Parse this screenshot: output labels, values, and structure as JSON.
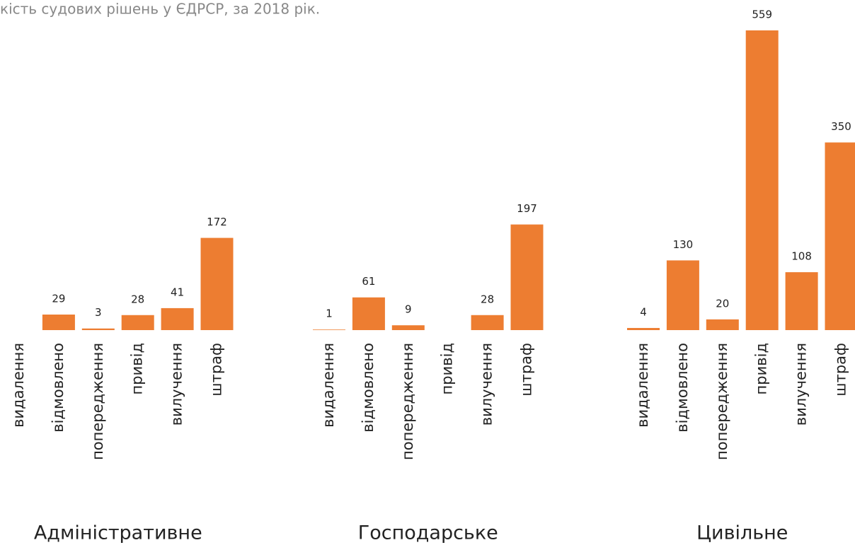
{
  "title": "кість судових рішень у ЄДРСР, за 2018 рік.",
  "chart_data": [
    {
      "type": "bar",
      "title": "Адміністративне",
      "color": "#ed7d31",
      "categories": [
        "видалення",
        "відмовлено",
        "попередження",
        "привід",
        "вилучення",
        "штраф"
      ],
      "values": [
        null,
        29,
        3,
        28,
        41,
        172
      ]
    },
    {
      "type": "bar",
      "title": "Господарське",
      "color": "#ed7d31",
      "categories": [
        "видалення",
        "відмовлено",
        "попередження",
        "привід",
        "вилучення",
        "штраф"
      ],
      "values": [
        1,
        61,
        9,
        null,
        28,
        197
      ]
    },
    {
      "type": "bar",
      "title": "Цивільне",
      "color": "#ed7d31",
      "categories": [
        "видалення",
        "відмовлено",
        "попередження",
        "привід",
        "вилучення",
        "штраф"
      ],
      "values": [
        4,
        130,
        20,
        559,
        108,
        350
      ]
    }
  ]
}
